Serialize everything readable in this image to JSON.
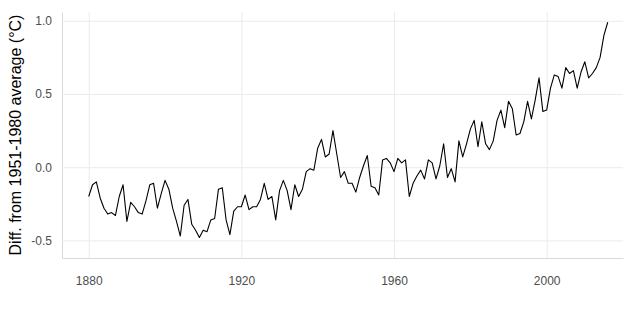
{
  "chart_data": {
    "type": "line",
    "y_label": "Diff. from 1951-1980 average (°C)",
    "x": [
      1880,
      1881,
      1882,
      1883,
      1884,
      1885,
      1886,
      1887,
      1888,
      1889,
      1890,
      1891,
      1892,
      1893,
      1894,
      1895,
      1896,
      1897,
      1898,
      1899,
      1900,
      1901,
      1902,
      1903,
      1904,
      1905,
      1906,
      1907,
      1908,
      1909,
      1910,
      1911,
      1912,
      1913,
      1914,
      1915,
      1916,
      1917,
      1918,
      1919,
      1920,
      1921,
      1922,
      1923,
      1924,
      1925,
      1926,
      1927,
      1928,
      1929,
      1930,
      1931,
      1932,
      1933,
      1934,
      1935,
      1936,
      1937,
      1938,
      1939,
      1940,
      1941,
      1942,
      1943,
      1944,
      1945,
      1946,
      1947,
      1948,
      1949,
      1950,
      1951,
      1952,
      1953,
      1954,
      1955,
      1956,
      1957,
      1958,
      1959,
      1960,
      1961,
      1962,
      1963,
      1964,
      1965,
      1966,
      1967,
      1968,
      1969,
      1970,
      1971,
      1972,
      1973,
      1974,
      1975,
      1976,
      1977,
      1978,
      1979,
      1980,
      1981,
      1982,
      1983,
      1984,
      1985,
      1986,
      1987,
      1988,
      1989,
      1990,
      1991,
      1992,
      1993,
      1994,
      1995,
      1996,
      1997,
      1998,
      1999,
      2000,
      2001,
      2002,
      2003,
      2004,
      2005,
      2006,
      2007,
      2008,
      2009,
      2010,
      2011,
      2012,
      2013,
      2014,
      2015,
      2016
    ],
    "values": [
      -0.2,
      -0.12,
      -0.1,
      -0.21,
      -0.28,
      -0.32,
      -0.31,
      -0.33,
      -0.2,
      -0.12,
      -0.37,
      -0.24,
      -0.27,
      -0.31,
      -0.32,
      -0.23,
      -0.12,
      -0.11,
      -0.28,
      -0.18,
      -0.09,
      -0.15,
      -0.28,
      -0.37,
      -0.47,
      -0.26,
      -0.22,
      -0.39,
      -0.43,
      -0.48,
      -0.43,
      -0.44,
      -0.36,
      -0.35,
      -0.15,
      -0.14,
      -0.36,
      -0.46,
      -0.3,
      -0.27,
      -0.27,
      -0.19,
      -0.29,
      -0.27,
      -0.27,
      -0.22,
      -0.11,
      -0.22,
      -0.2,
      -0.36,
      -0.16,
      -0.09,
      -0.16,
      -0.29,
      -0.12,
      -0.2,
      -0.15,
      -0.03,
      -0.01,
      -0.02,
      0.13,
      0.19,
      0.07,
      0.09,
      0.25,
      0.09,
      -0.07,
      -0.03,
      -0.11,
      -0.11,
      -0.17,
      -0.07,
      0.01,
      0.08,
      -0.13,
      -0.14,
      -0.19,
      0.05,
      0.06,
      0.03,
      -0.03,
      0.06,
      0.03,
      0.05,
      -0.2,
      -0.11,
      -0.06,
      -0.02,
      -0.08,
      0.05,
      0.03,
      -0.08,
      0.01,
      0.16,
      -0.07,
      -0.01,
      -0.1,
      0.18,
      0.07,
      0.16,
      0.26,
      0.32,
      0.14,
      0.31,
      0.16,
      0.12,
      0.18,
      0.32,
      0.39,
      0.27,
      0.45,
      0.4,
      0.22,
      0.23,
      0.31,
      0.45,
      0.33,
      0.46,
      0.61,
      0.38,
      0.39,
      0.54,
      0.63,
      0.62,
      0.54,
      0.68,
      0.64,
      0.66,
      0.54,
      0.65,
      0.72,
      0.61,
      0.64,
      0.68,
      0.75,
      0.9,
      0.99
    ],
    "color": "#000000",
    "xlim": [
      1873,
      2020
    ],
    "xticks": [
      1880,
      1920,
      1960,
      2000
    ],
    "ylim": [
      -0.62,
      1.06
    ],
    "yticks": [
      {
        "value": -0.5,
        "label": "-0.5"
      },
      {
        "value": 0,
        "label": "0.0"
      },
      {
        "value": 0.5,
        "label": "0.5"
      },
      {
        "value": 1,
        "label": "1.0"
      }
    ],
    "grid": true
  }
}
